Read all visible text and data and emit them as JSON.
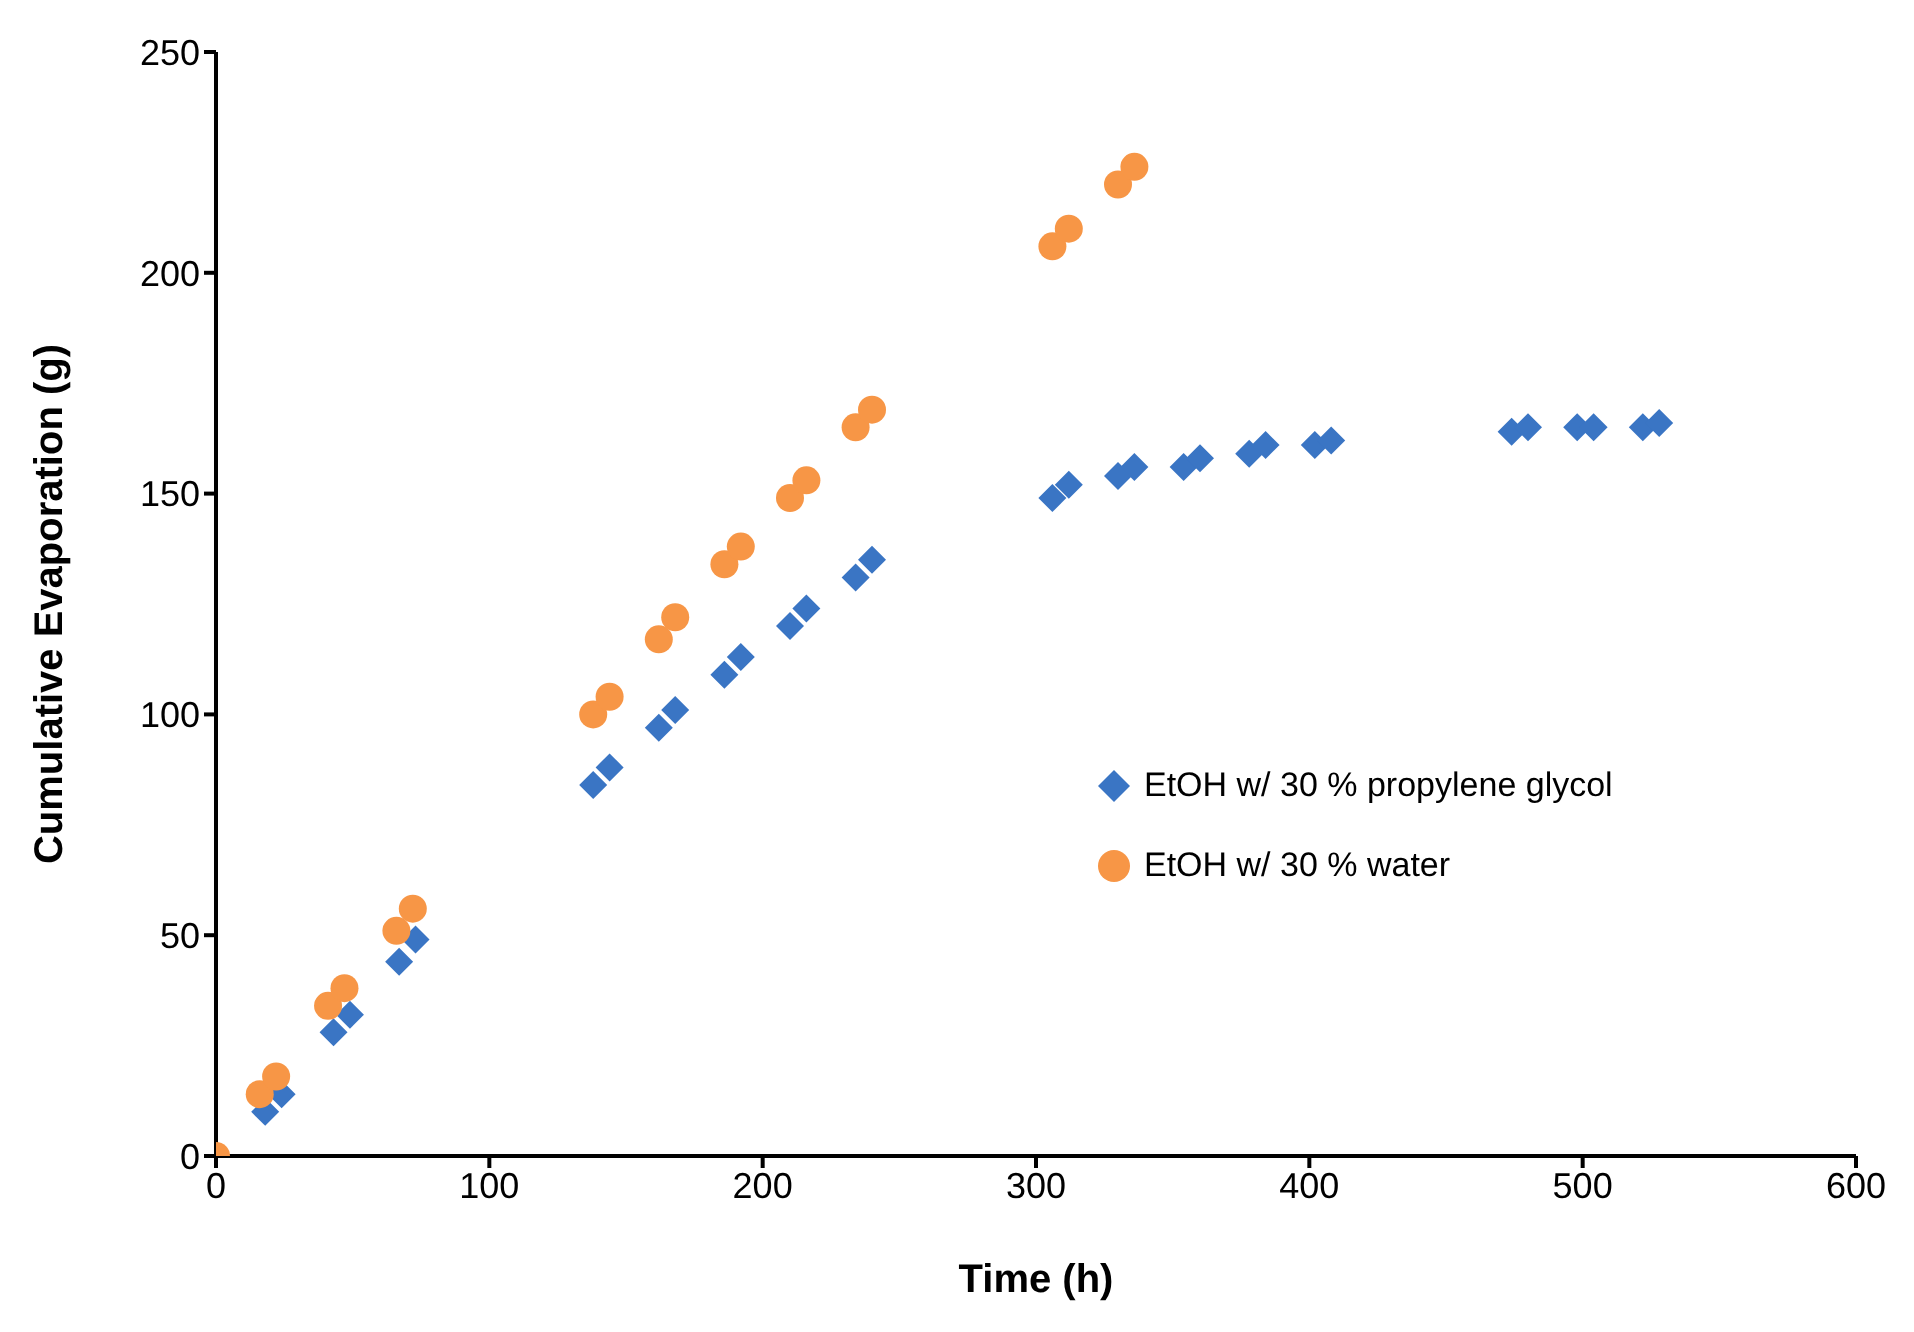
{
  "chart_data": {
    "type": "scatter",
    "xlabel": "Time (h)",
    "ylabel": "Cumulative Evaporation (g)",
    "xlim": [
      0,
      600
    ],
    "xticks": [
      0,
      100,
      200,
      300,
      400,
      500,
      600
    ],
    "ylim": [
      0,
      250
    ],
    "yticks": [
      0,
      50,
      100,
      150,
      200,
      250
    ],
    "legend": "right",
    "series": [
      {
        "name": "EtOH w/ 30 % propylene glycol",
        "color": "#3a75c4",
        "marker": "diamond",
        "x": [
          18,
          24,
          43,
          49,
          67,
          73,
          138,
          144,
          162,
          168,
          186,
          192,
          210,
          216,
          234,
          240,
          306,
          312,
          330,
          336,
          354,
          360,
          378,
          384,
          402,
          408,
          474,
          480,
          498,
          504,
          522,
          528
        ],
        "values": [
          10,
          14,
          28,
          32,
          44,
          49,
          84,
          88,
          97,
          101,
          109,
          113,
          120,
          124,
          131,
          135,
          149,
          152,
          154,
          156,
          156,
          158,
          159,
          161,
          161,
          162,
          164,
          165,
          165,
          165,
          165,
          166
        ]
      },
      {
        "name": "EtOH w/ 30 % water",
        "color": "#f79646",
        "marker": "circle",
        "x": [
          0,
          16,
          22,
          41,
          47,
          66,
          72,
          138,
          144,
          162,
          168,
          186,
          192,
          210,
          216,
          234,
          240,
          306,
          312,
          330,
          336
        ],
        "values": [
          0,
          14,
          18,
          34,
          38,
          51,
          56,
          100,
          104,
          117,
          122,
          134,
          138,
          149,
          153,
          165,
          169,
          206,
          210,
          220,
          224
        ]
      }
    ]
  }
}
